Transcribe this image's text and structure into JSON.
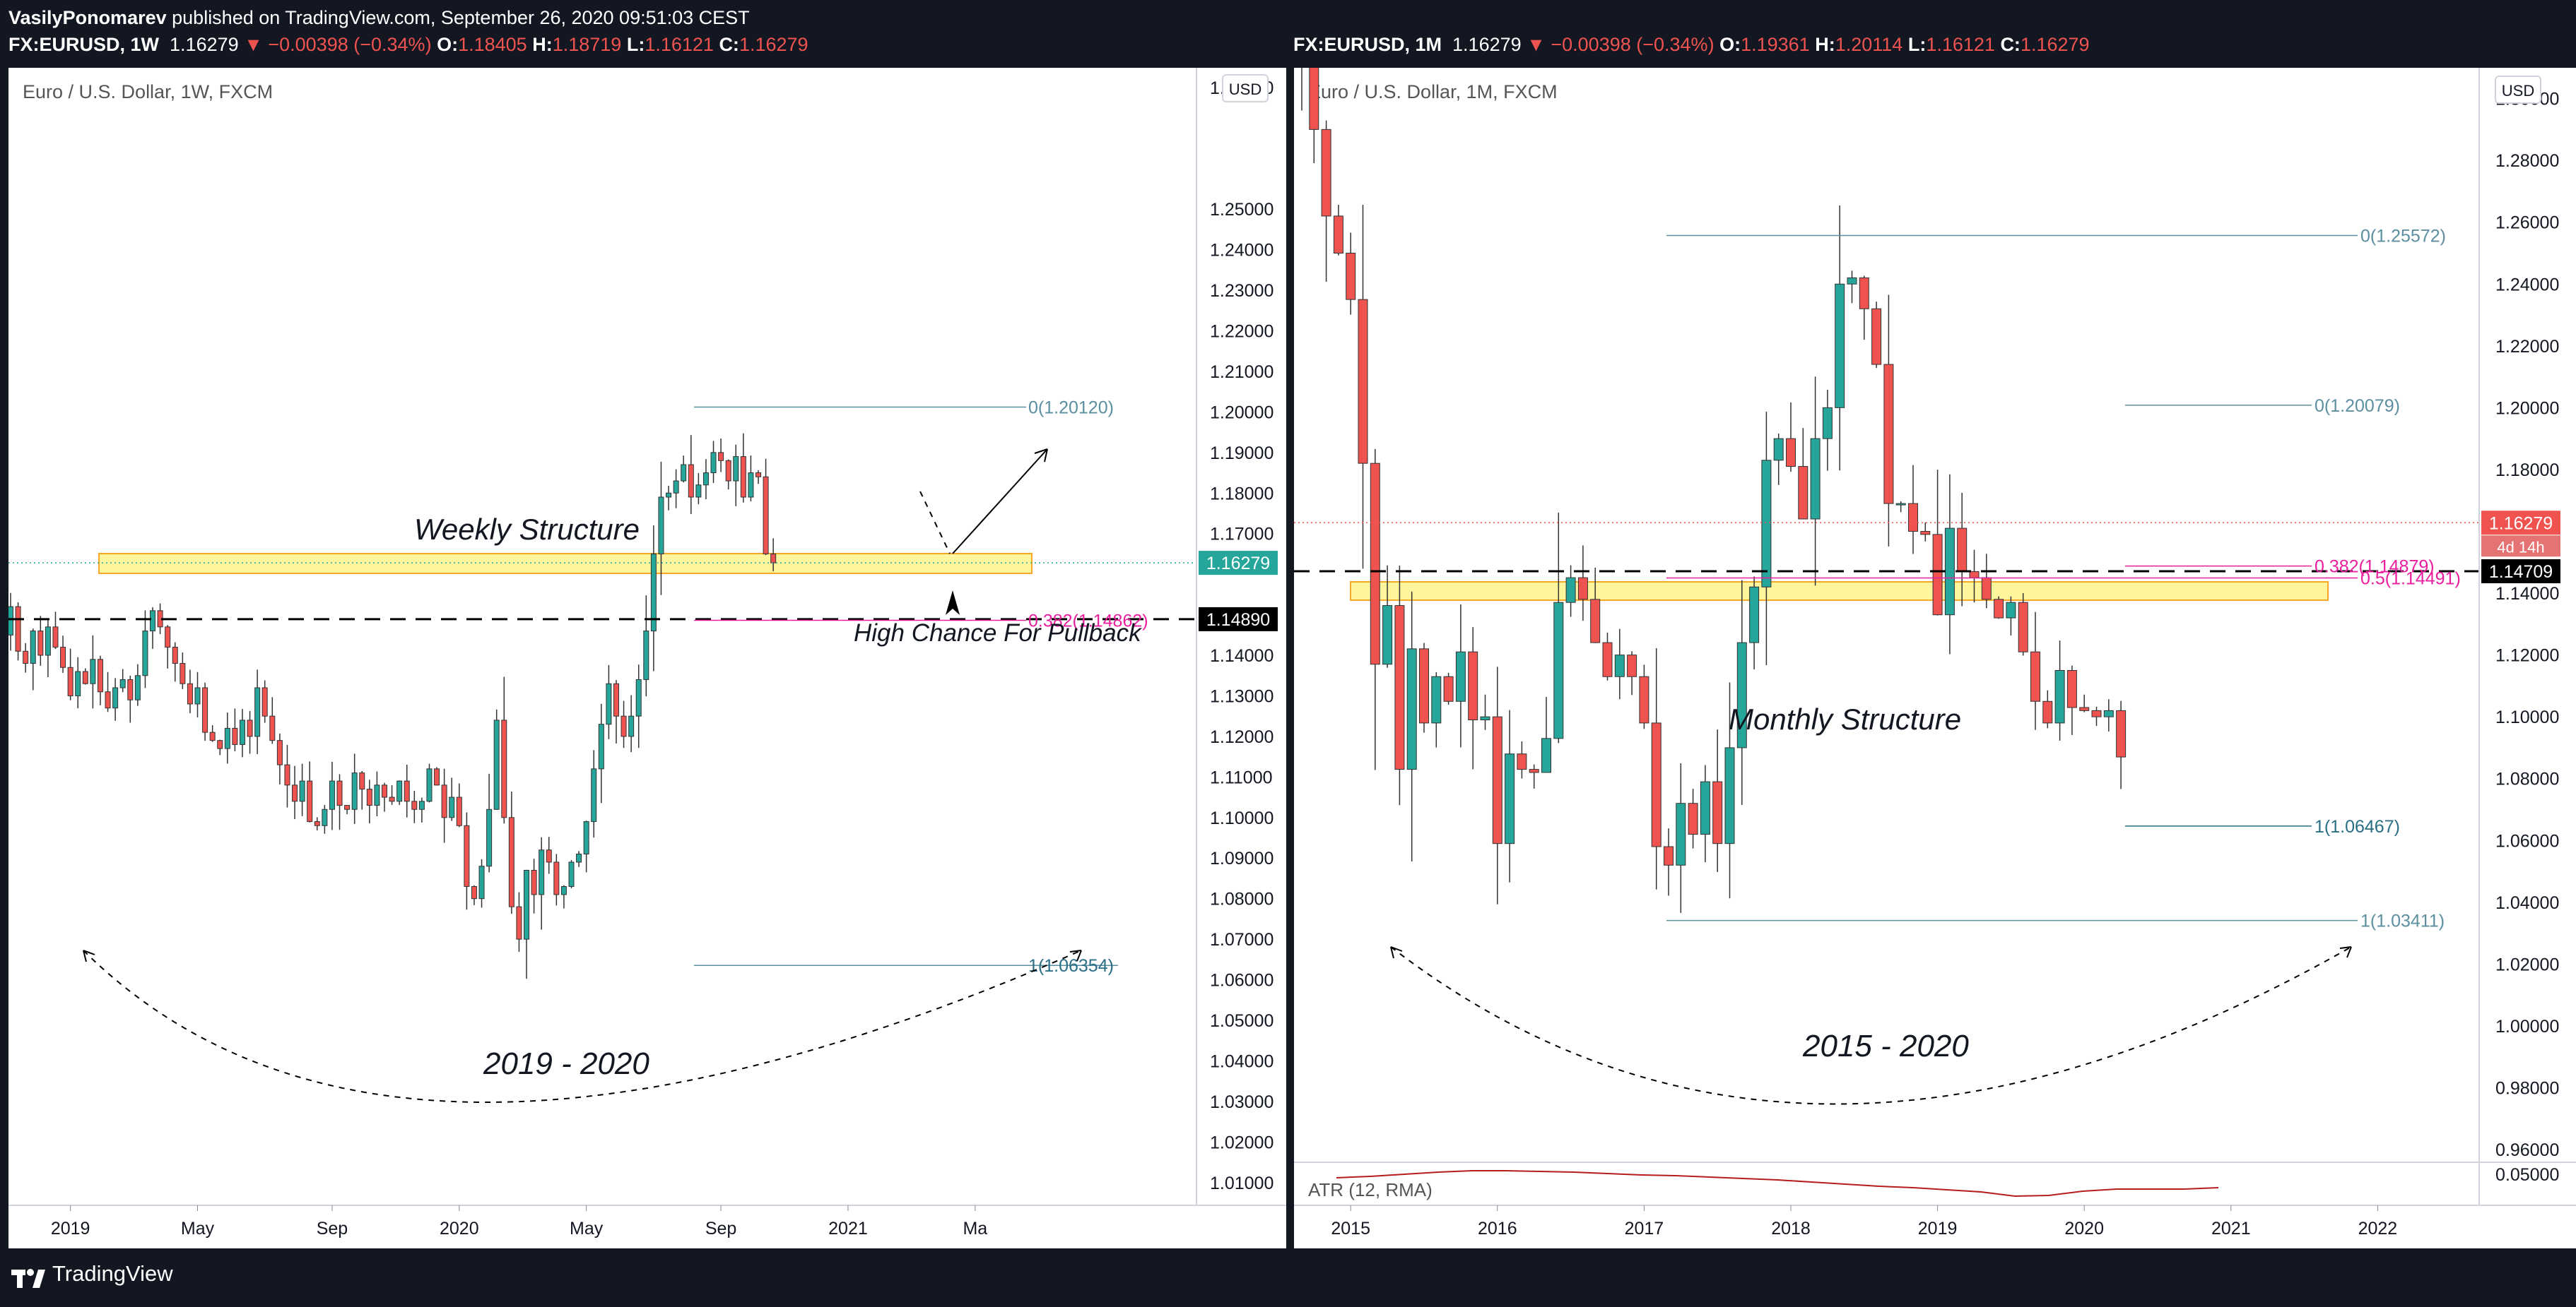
{
  "header": {
    "publisher": "VasilyPonomarev",
    "published": "published on TradingView.com, September 26, 2020 09:51:03 CEST",
    "left": {
      "symbol": "FX:EURUSD, 1W",
      "price": "1.16279",
      "change": "▼ −0.00398 (−0.34%)",
      "o_label": "O:",
      "o": "1.18405",
      "h_label": "H:",
      "h": "1.18719",
      "l_label": "L:",
      "l": "1.16121",
      "c_label": "C:",
      "c": "1.16279"
    },
    "right": {
      "symbol": "FX:EURUSD, 1M",
      "price": "1.16279",
      "change": "▼ −0.00398 (−0.34%)",
      "o_label": "O:",
      "o": "1.19361",
      "h_label": "H:",
      "h": "1.20114",
      "l_label": "L:",
      "l": "1.16121",
      "c_label": "C:",
      "c": "1.16279"
    }
  },
  "footer": {
    "brand": "TradingView"
  },
  "colors": {
    "up": "#26a69a",
    "down": "#ef5350",
    "fib": "#5b8fa0",
    "fib_mid": "#e91e9e",
    "zone_fill": "#fff59d",
    "zone_border": "#f9a825",
    "bg": "#ffffff",
    "axis_text": "#131722"
  },
  "chart_data": [
    {
      "type": "candlestick",
      "title": "Euro / U.S. Dollar, 1W, FXCM",
      "currency": "USD",
      "ylim": [
        1.005,
        1.2845
      ],
      "yticks": [
        "1.28000",
        "1.25000",
        "1.24000",
        "1.23000",
        "1.22000",
        "1.21000",
        "1.20000",
        "1.19000",
        "1.18000",
        "1.17000",
        "1.15000",
        "1.14000",
        "1.13000",
        "1.12000",
        "1.11000",
        "1.10000",
        "1.09000",
        "1.08000",
        "1.07000",
        "1.06000",
        "1.05000",
        "1.04000",
        "1.03000",
        "1.02000",
        "1.01000"
      ],
      "xticks": [
        "2019",
        "May",
        "Sep",
        "2020",
        "May",
        "Sep",
        "2021",
        "Ma"
      ],
      "xtick_week_index": [
        8,
        25,
        43,
        60,
        77,
        95,
        112,
        129
      ],
      "candle_count": 104,
      "candle_anchors": [
        1.145,
        1.152,
        1.141,
        1.138,
        1.146,
        1.14,
        1.147,
        1.142,
        1.137,
        1.13,
        1.136,
        1.133,
        1.139,
        1.131,
        1.127,
        1.132,
        1.134,
        1.129,
        1.135,
        1.146,
        1.151,
        1.147,
        1.142,
        1.138,
        1.133,
        1.128,
        1.132,
        1.121,
        1.119,
        1.117,
        1.122,
        1.118,
        1.124,
        1.12,
        1.132,
        1.125,
        1.119,
        1.113,
        1.108,
        1.104,
        1.109,
        1.099,
        1.098,
        1.102,
        1.109,
        1.103,
        1.102,
        1.111,
        1.107,
        1.103,
        1.108,
        1.105,
        1.104,
        1.109,
        1.104,
        1.102,
        1.104,
        1.112,
        1.108,
        1.1,
        1.105,
        1.098,
        1.083,
        1.08,
        1.088,
        1.102,
        1.124,
        1.1,
        1.078,
        1.07,
        1.087,
        1.081,
        1.092,
        1.089,
        1.081,
        1.083,
        1.089,
        1.091,
        1.099,
        1.112,
        1.123,
        1.133,
        1.125,
        1.12,
        1.125,
        1.134,
        1.146,
        1.165,
        1.179,
        1.18,
        1.183,
        1.187,
        1.179,
        1.182,
        1.185,
        1.19,
        1.188,
        1.183,
        1.189,
        1.179,
        1.185,
        1.184,
        1.165,
        1.1628
      ],
      "last_price": "1.16279",
      "level_price": "1.14890",
      "fib": [
        {
          "label": "0(1.20120)",
          "value": 1.2012
        },
        {
          "label": "0.382(1.14862)",
          "value": 1.14862
        },
        {
          "label": "1(1.06354)",
          "value": 1.06354
        }
      ],
      "annotations": [
        "Weekly Structure",
        "High Chance For Pullback",
        "2019 - 2020"
      ]
    },
    {
      "type": "candlestick",
      "title": "Euro / U.S. Dollar, 1M, FXCM",
      "currency": "USD",
      "ylim": [
        0.9575,
        1.3095
      ],
      "yticks": [
        "1.30000",
        "1.28000",
        "1.26000",
        "1.24000",
        "1.22000",
        "1.20000",
        "1.18000",
        "1.14000",
        "1.12000",
        "1.10000",
        "1.08000",
        "1.06000",
        "1.04000",
        "1.02000",
        "1.00000",
        "0.98000",
        "0.96000"
      ],
      "xticks": [
        "2015",
        "2016",
        "2017",
        "2018",
        "2019",
        "2020",
        "2021",
        "2022"
      ],
      "xtick_month_index": [
        4,
        16,
        28,
        40,
        52,
        64,
        76,
        88
      ],
      "candle_count": 69,
      "candle_anchors": [
        1.346,
        1.312,
        1.29,
        1.262,
        1.25,
        1.235,
        1.182,
        1.117,
        1.136,
        1.083,
        1.122,
        1.098,
        1.113,
        1.105,
        1.121,
        1.099,
        1.1,
        1.059,
        1.088,
        1.083,
        1.082,
        1.093,
        1.137,
        1.145,
        1.138,
        1.124,
        1.113,
        1.12,
        1.113,
        1.098,
        1.058,
        1.052,
        1.072,
        1.062,
        1.079,
        1.059,
        1.09,
        1.124,
        1.142,
        1.183,
        1.19,
        1.181,
        1.164,
        1.19,
        1.2,
        1.24,
        1.242,
        1.232,
        1.214,
        1.169,
        1.169,
        1.16,
        1.159,
        1.133,
        1.161,
        1.147,
        1.145,
        1.138,
        1.132,
        1.137,
        1.121,
        1.105,
        1.098,
        1.115,
        1.103,
        1.102,
        1.1,
        1.102,
        1.087
      ]
    }
  ]
}
